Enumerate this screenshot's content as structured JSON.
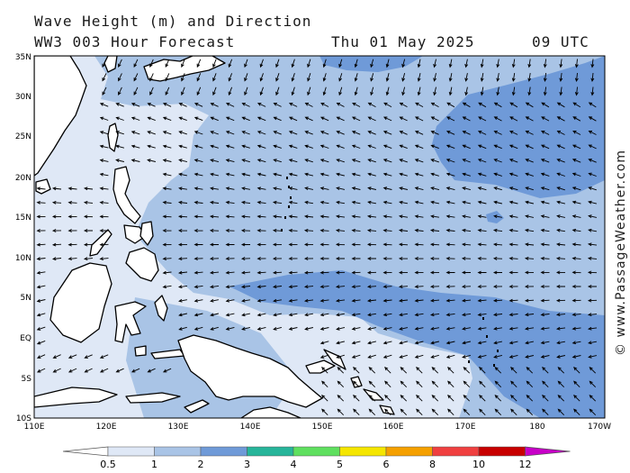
{
  "header": {
    "title": "Wave Height (m) and Direction",
    "model_run": "WW3 003 Hour Forecast",
    "date": "Thu 01 May 2025",
    "time": "09 UTC"
  },
  "credit": "© www.PassageWeather.com",
  "map": {
    "lat_labels": [
      "35N",
      "30N",
      "25N",
      "20N",
      "15N",
      "10N",
      "5N",
      "EQ",
      "5S",
      "10S"
    ],
    "lon_labels": [
      "110E",
      "120E",
      "130E",
      "140E",
      "150E",
      "160E",
      "170E",
      "180",
      "170W"
    ]
  },
  "colorbar": {
    "levels": [
      "0.5",
      "1",
      "2",
      "3",
      "4",
      "5",
      "6",
      "8",
      "10",
      "12"
    ],
    "colors": [
      "#dfe8f6",
      "#a9c4e6",
      "#6f9ad8",
      "#27b59a",
      "#5fe05f",
      "#f5e600",
      "#f5a000",
      "#f04040",
      "#c80000",
      "#c800c8"
    ],
    "under_color": "#ffffff",
    "over_color": "#c800c8"
  },
  "wave_colors": {
    "land": "#ffffff",
    "coast": "#000000",
    "lt_0_5": "#ffffff",
    "band_0_5_1": "#dfe8f6",
    "band_1_2": "#a9c4e6",
    "band_2_3": "#6f9ad8"
  }
}
